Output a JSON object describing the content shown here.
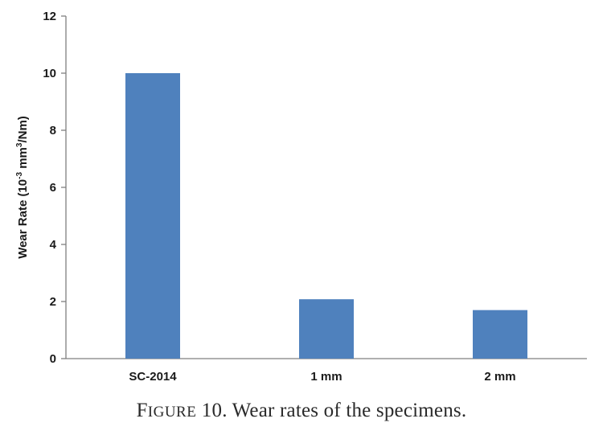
{
  "chart_data": {
    "type": "bar",
    "categories": [
      "SC-2014",
      "1 mm",
      "2 mm"
    ],
    "values": [
      10.0,
      2.08,
      1.7
    ],
    "ylabel_prefix": "Wear Rate (10",
    "ylabel_sup1": "-3",
    "ylabel_mid": " mm",
    "ylabel_sup2": "3",
    "ylabel_suffix": "/Nm)",
    "ylim": [
      0,
      12
    ],
    "yticks": [
      "0",
      "2",
      "4",
      "6",
      "8",
      "10",
      "12"
    ],
    "grid": false,
    "legend": "none",
    "bar_color": "#4f81bd"
  },
  "caption": {
    "first_letter": "F",
    "smallcaps": "IGURE",
    "rest": " 10. Wear rates of the specimens."
  }
}
